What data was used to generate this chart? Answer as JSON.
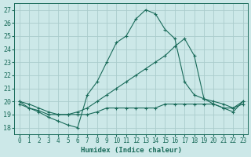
{
  "xlabel": "Humidex (Indice chaleur)",
  "xlim": [
    -0.5,
    23.5
  ],
  "ylim": [
    17.5,
    27.5
  ],
  "yticks": [
    18,
    19,
    20,
    21,
    22,
    23,
    24,
    25,
    26,
    27
  ],
  "xticks": [
    0,
    1,
    2,
    3,
    4,
    5,
    6,
    7,
    8,
    9,
    10,
    11,
    12,
    13,
    14,
    15,
    16,
    17,
    18,
    19,
    20,
    21,
    22,
    23
  ],
  "line_color": "#1a6b5a",
  "bg_color": "#cce8e8",
  "grid_color": "#aacccc",
  "lines": [
    {
      "x": [
        0,
        1,
        2,
        3,
        4,
        5,
        6,
        7,
        8,
        9,
        10,
        11,
        12,
        13,
        14,
        15,
        16,
        17,
        18,
        19,
        20,
        21,
        22,
        23
      ],
      "y": [
        20.0,
        19.5,
        19.2,
        18.8,
        18.5,
        18.2,
        18.0,
        20.5,
        21.5,
        23.0,
        24.5,
        25.0,
        26.3,
        27.0,
        26.7,
        25.5,
        24.8,
        21.5,
        20.5,
        20.2,
        20.0,
        19.8,
        19.5,
        20.0
      ]
    },
    {
      "x": [
        0,
        1,
        2,
        3,
        4,
        5,
        6,
        7,
        8,
        9,
        10,
        11,
        12,
        13,
        14,
        15,
        16,
        17,
        18,
        19,
        20,
        21,
        22,
        23
      ],
      "y": [
        20.0,
        19.8,
        19.5,
        19.2,
        19.0,
        19.0,
        19.2,
        19.5,
        20.0,
        20.5,
        21.0,
        21.5,
        22.0,
        22.5,
        23.0,
        23.5,
        24.2,
        24.8,
        23.5,
        20.2,
        19.8,
        19.5,
        19.2,
        20.0
      ]
    },
    {
      "x": [
        0,
        1,
        2,
        3,
        4,
        5,
        6,
        7,
        8,
        9,
        10,
        11,
        12,
        13,
        14,
        15,
        16,
        17,
        18,
        19,
        20,
        21,
        22,
        23
      ],
      "y": [
        19.8,
        19.5,
        19.3,
        19.0,
        19.0,
        19.0,
        19.0,
        19.0,
        19.2,
        19.5,
        19.5,
        19.5,
        19.5,
        19.5,
        19.5,
        19.8,
        19.8,
        19.8,
        19.8,
        19.8,
        19.8,
        19.5,
        19.5,
        19.8
      ]
    }
  ]
}
